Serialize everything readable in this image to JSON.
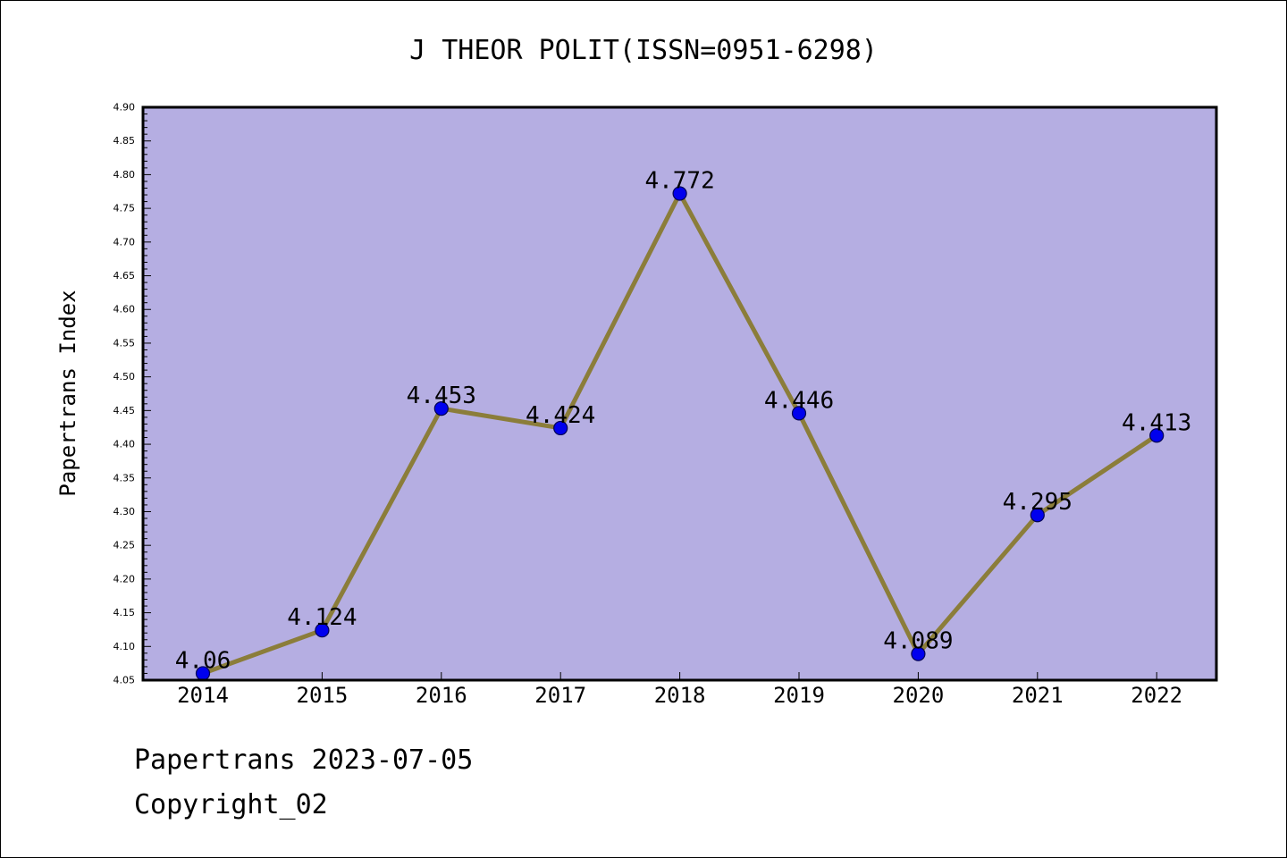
{
  "colors": {
    "background": "#ffffff",
    "plot_background": "#b5aee2",
    "line": "#8b7d3a",
    "marker_fill": "#0000ee",
    "marker_edge": "#000055",
    "text": "#000000"
  },
  "footer": {
    "date_line": "Papertrans 2023-07-05",
    "copyright_line": "Copyright_02"
  },
  "chart_data": {
    "type": "line",
    "title": "J THEOR POLIT(ISSN=0951-6298)",
    "xlabel": "",
    "ylabel": "Papertrans Index",
    "categories": [
      "2014",
      "2015",
      "2016",
      "2017",
      "2018",
      "2019",
      "2020",
      "2021",
      "2022"
    ],
    "series": [
      {
        "values": [
          4.06,
          4.124,
          4.453,
          4.424,
          4.772,
          4.446,
          4.089,
          4.295,
          4.413
        ],
        "labels": [
          "4.06",
          "4.124",
          "4.453",
          "4.424",
          "4.772",
          "4.446",
          "4.089",
          "4.295",
          "4.413"
        ]
      }
    ],
    "ylim": [
      4.05,
      4.9
    ],
    "yticks": [
      "4.05",
      "4.10",
      "4.15",
      "4.20",
      "4.25",
      "4.30",
      "4.35",
      "4.40",
      "4.45",
      "4.50",
      "4.55",
      "4.60",
      "4.65",
      "4.70",
      "4.75",
      "4.80",
      "4.85",
      "4.90"
    ],
    "minor_tick_step": 0.01,
    "grid": false,
    "legend": "none"
  }
}
